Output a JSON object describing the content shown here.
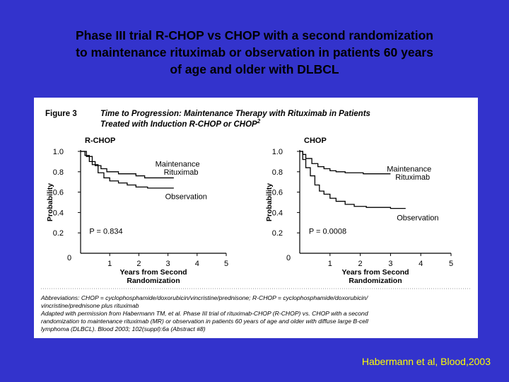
{
  "slide": {
    "title_lines": [
      "Phase III trial R-CHOP vs CHOP with a second randomization",
      "to maintenance rituximab or observation in patients 60 years",
      "of age and older with DLBCL"
    ],
    "citation": "Habermann et al, Blood,2003",
    "colors": {
      "background": "#3333cc",
      "citation": "#ffff00",
      "title": "#000000"
    }
  },
  "figure": {
    "label": "Figure 3",
    "title_lines": [
      "Time to Progression: Maintenance Therapy with Rituximab in Patients",
      "Treated with Induction R-CHOP or CHOP"
    ],
    "title_superscript": "2",
    "footnote_lines": [
      "Abbreviations: CHOP = cyclophosphamide/doxorubicin/vincristine/prednisone; R-CHOP = cyclophosphamide/doxorubicin/",
      "vincristine/prednisone plus rituximab",
      "Adapted with permission from Habermann TM, et al. Phase III trial of rituximab-CHOP (R-CHOP) vs. CHOP with a second",
      "randomization to maintenance rituximab (MR) or observation in patients 60 years of age and older with diffuse large B-cell",
      "lymphoma (DLBCL). Blood 2003; 102(suppl):6a (Abstract #8)"
    ]
  },
  "chart_data": [
    {
      "type": "line",
      "step": true,
      "title": "R-CHOP",
      "xlabel_lines": [
        "Years from Second",
        "Randomization"
      ],
      "ylabel": "Probability",
      "xlim": [
        0,
        5
      ],
      "ylim": [
        0,
        1
      ],
      "x_ticks": [
        "0",
        "1",
        "2",
        "3",
        "4",
        "5"
      ],
      "y_ticks": [
        "0.2",
        "0.4",
        "0.6",
        "0.8",
        "1.0"
      ],
      "annotation": "P = 0.834",
      "series": [
        {
          "name": "Maintenance Rituximab",
          "label_lines": [
            "Maintenance",
            "Rituximab"
          ],
          "x": [
            0,
            0.15,
            0.3,
            0.5,
            0.7,
            0.9,
            1.1,
            1.3,
            1.6,
            1.9,
            2.2,
            2.6,
            3.2
          ],
          "y": [
            1.0,
            0.96,
            0.9,
            0.86,
            0.83,
            0.8,
            0.8,
            0.78,
            0.78,
            0.76,
            0.74,
            0.74,
            0.74
          ]
        },
        {
          "name": "Observation",
          "label_lines": [
            "Observation"
          ],
          "x": [
            0,
            0.2,
            0.4,
            0.6,
            0.8,
            1.0,
            1.3,
            1.6,
            1.9,
            2.3,
            2.7,
            3.2
          ],
          "y": [
            1.0,
            0.95,
            0.87,
            0.79,
            0.74,
            0.71,
            0.69,
            0.67,
            0.65,
            0.64,
            0.64,
            0.64
          ]
        }
      ]
    },
    {
      "type": "line",
      "step": true,
      "title": "CHOP",
      "xlabel_lines": [
        "Years from Second",
        "Randomization"
      ],
      "ylabel": "Probability",
      "xlim": [
        0,
        5
      ],
      "ylim": [
        0,
        1
      ],
      "x_ticks": [
        "0",
        "1",
        "2",
        "3",
        "4",
        "5"
      ],
      "y_ticks": [
        "0.2",
        "0.4",
        "0.6",
        "0.8",
        "1.0"
      ],
      "annotation": "P = 0.0008",
      "series": [
        {
          "name": "Maintenance Rituximab",
          "label_lines": [
            "Maintenance",
            "Rituximab"
          ],
          "x": [
            0,
            0.1,
            0.2,
            0.4,
            0.6,
            0.8,
            1.0,
            1.2,
            1.5,
            1.8,
            2.1,
            2.5,
            3.0
          ],
          "y": [
            1.0,
            0.97,
            0.93,
            0.88,
            0.85,
            0.83,
            0.81,
            0.8,
            0.79,
            0.79,
            0.78,
            0.78,
            0.78
          ]
        },
        {
          "name": "Observation",
          "label_lines": [
            "Observation"
          ],
          "x": [
            0,
            0.1,
            0.2,
            0.35,
            0.5,
            0.65,
            0.8,
            1.0,
            1.2,
            1.5,
            1.8,
            2.2,
            2.6,
            3.0,
            3.5
          ],
          "y": [
            1.0,
            0.92,
            0.84,
            0.76,
            0.67,
            0.61,
            0.58,
            0.54,
            0.51,
            0.48,
            0.46,
            0.45,
            0.45,
            0.44,
            0.44
          ]
        }
      ]
    }
  ]
}
